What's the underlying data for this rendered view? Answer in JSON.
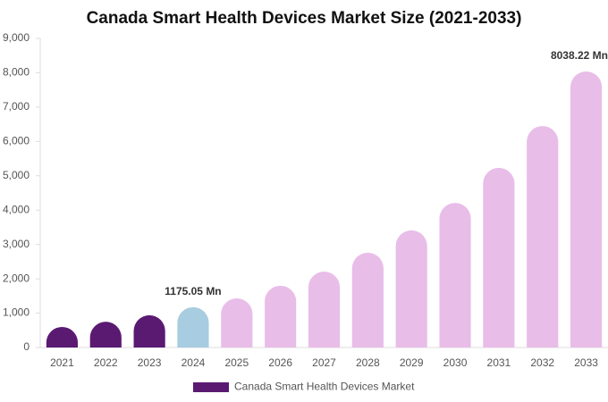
{
  "chart_data": {
    "type": "bar",
    "title": "Canada Smart Health Devices Market Size (2021-2033)",
    "categories": [
      "2021",
      "2022",
      "2023",
      "2024",
      "2025",
      "2026",
      "2027",
      "2028",
      "2029",
      "2030",
      "2031",
      "2032",
      "2033"
    ],
    "series": [
      {
        "name": "Canada Smart Health Devices Market",
        "color": "#5a1a72",
        "colors": [
          "#5a1a72",
          "#5a1a72",
          "#5a1a72",
          "#a8cce0",
          "#e8bde8",
          "#e8bde8",
          "#e8bde8",
          "#e8bde8",
          "#e8bde8",
          "#e8bde8",
          "#e8bde8",
          "#e8bde8",
          "#e8bde8"
        ],
        "values": [
          600,
          750,
          940,
          1175.05,
          1430,
          1800,
          2210,
          2760,
          3410,
          4210,
          5230,
          6450,
          8038.22
        ],
        "value_labels": [
          null,
          null,
          null,
          "1175.05 Mn",
          null,
          null,
          null,
          null,
          null,
          null,
          null,
          null,
          "8038.22 Mn"
        ]
      }
    ],
    "ylim": [
      0,
      9000
    ],
    "yticks": [
      0,
      {
        "value": 1000,
        "label": "1,000"
      },
      {
        "value": 2000,
        "label": "2,000"
      },
      {
        "value": 3000,
        "label": "3,000"
      },
      {
        "value": 4000,
        "label": "4,000"
      },
      {
        "value": 5000,
        "label": "5,000"
      },
      {
        "value": 6000,
        "label": "6,000"
      },
      {
        "value": 7000,
        "label": "7,000"
      },
      {
        "value": 8000,
        "label": "8,000"
      },
      {
        "value": 9000,
        "label": "9,000"
      }
    ],
    "grid": false,
    "legend": "bottom"
  }
}
